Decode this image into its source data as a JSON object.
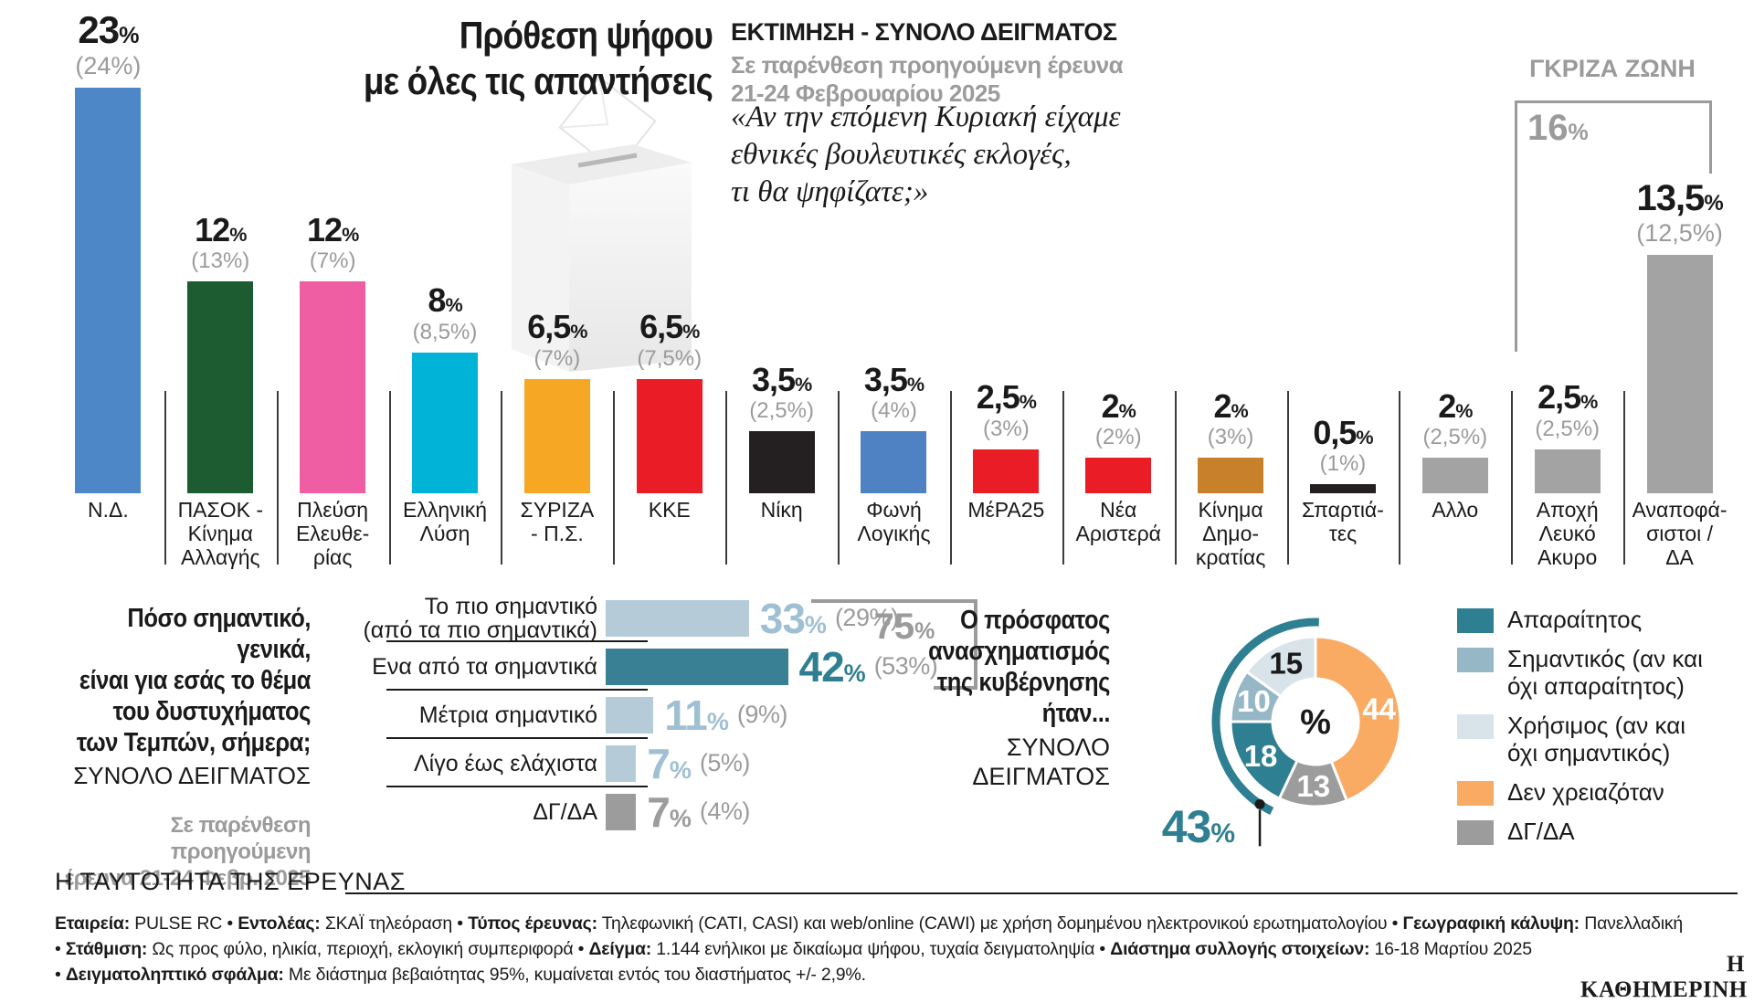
{
  "title": "Πρόθεση ψήφου\nμε όλες τις απαντήσεις",
  "header": {
    "estimate_label": "ΕΚΤΙΜΗΣΗ - ΣΥΝΟΛΟ ΔΕΙΓΜΑΤΟΣ",
    "paren_note": "Σε παρένθεση προηγούμενη έρευνα\n21-24 Φεβρουαρίου 2025",
    "quote": "«Αν την επόμενη Κυριακή είχαμε\nεθνικές βουλευτικές εκλογές,\nτι θα ψηφίζατε;»"
  },
  "gray_zone": {
    "label": "ΓΚΡΙΖΑ ΖΩΝΗ",
    "value": "16",
    "unit": "%"
  },
  "chart_data": [
    {
      "type": "bar",
      "title": "Πρόθεση ψήφου με όλες τις απαντήσεις",
      "unit": "%",
      "note": "Σε παρένθεση προηγούμενη έρευνα 21-24 Φεβρουαρίου 2025",
      "ylim": [
        0,
        25
      ],
      "grid": false,
      "bars": [
        {
          "label": "Ν.Δ.",
          "label_lines": "Ν.Δ.",
          "value": 23,
          "value_text": "23",
          "prev": "(24%)",
          "color": "#4e87c7"
        },
        {
          "label": "ΠΑΣΟΚ - Κίνημα Αλλαγής",
          "label_lines": "ΠΑΣΟΚ -\nΚίνημα\nΑλλαγής",
          "value": 12,
          "value_text": "12",
          "prev": "(13%)",
          "color": "#1d5c31"
        },
        {
          "label": "Πλεύση Ελευθερίας",
          "label_lines": "Πλεύση\nΕλευθε-\nρίας",
          "value": 12,
          "value_text": "12",
          "prev": "(7%)",
          "color": "#ef5ea2"
        },
        {
          "label": "Ελληνική Λύση",
          "label_lines": "Ελληνική\nΛύση",
          "value": 8,
          "value_text": "8",
          "prev": "(8,5%)",
          "color": "#00b3d7"
        },
        {
          "label": "ΣΥΡΙΖΑ - Π.Σ.",
          "label_lines": "ΣΥΡΙΖΑ\n- Π.Σ.",
          "value": 6.5,
          "value_text": "6,5",
          "prev": "(7%)",
          "color": "#f6a723"
        },
        {
          "label": "ΚΚΕ",
          "label_lines": "ΚΚΕ",
          "value": 6.5,
          "value_text": "6,5",
          "prev": "(7,5%)",
          "color": "#ea1c25"
        },
        {
          "label": "Νίκη",
          "label_lines": "Νίκη",
          "value": 3.5,
          "value_text": "3,5",
          "prev": "(2,5%)",
          "color": "#241f21"
        },
        {
          "label": "Φωνή Λογικής",
          "label_lines": "Φωνή\nΛογικής",
          "value": 3.5,
          "value_text": "3,5",
          "prev": "(4%)",
          "color": "#4e82c2"
        },
        {
          "label": "ΜέΡΑ25",
          "label_lines": "ΜέΡΑ25",
          "value": 2.5,
          "value_text": "2,5",
          "prev": "(3%)",
          "color": "#ea1c25"
        },
        {
          "label": "Νέα Αριστερά",
          "label_lines": "Νέα\nΑριστερά",
          "value": 2,
          "value_text": "2",
          "prev": "(2%)",
          "color": "#ea1c25"
        },
        {
          "label": "Κίνημα Δημοκρατίας",
          "label_lines": "Κίνημα\nΔημο-\nκρατίας",
          "value": 2,
          "value_text": "2",
          "prev": "(3%)",
          "color": "#c9802a"
        },
        {
          "label": "Σπαρτιάτες",
          "label_lines": "Σπαρτιά-\nτες",
          "value": 0.5,
          "value_text": "0,5",
          "prev": "(1%)",
          "color": "#241f21"
        },
        {
          "label": "Αλλο",
          "label_lines": "Αλλο",
          "value": 2,
          "value_text": "2",
          "prev": "(2,5%)",
          "color": "#a3a3a3"
        },
        {
          "label": "Αποχή Λευκό Ακυρο",
          "label_lines": "Αποχή\nΛευκό\nΑκυρο",
          "value": 2.5,
          "value_text": "2,5",
          "prev": "(2,5%)",
          "color": "#a3a3a3"
        },
        {
          "label": "Αναποφάσιστοι / ΔΑ",
          "label_lines": "Αναποφά-\nσιστοι /\nΔΑ",
          "value": 13.5,
          "value_text": "13,5",
          "prev": "(12,5%)",
          "color": "#a3a3a3"
        }
      ],
      "gray_zone_note": "ΓΚΡΙΖΑ ΖΩΝΗ 16% = Αποχή Λευκό Ακυρο 2,5% + Αναποφάσιστοι/ΔΑ 13,5%"
    },
    {
      "type": "bar-horizontal",
      "question": "Πόσο σημαντικό, γενικά,\nείναι για εσάς το θέμα\nτου δυστυχήματος\nτων Τεμπών, σήμερα;",
      "sample_label": "ΣΥΝΟΛΟ ΔΕΙΓΜΑΤΟΣ",
      "note": "Σε παρένθεση προηγούμενη\nέρευνα 21-24 Φεβρ. 2025",
      "unit": "%",
      "rows": [
        {
          "label": "Το πιο σημαντικό\n(από τα πιο σημαντικά)",
          "value": 33,
          "value_text": "33",
          "prev": "(29%)",
          "bar_color": "#b5cbd8",
          "num_color": "#9fc0d2"
        },
        {
          "label": "Ενα από τα σημαντικά",
          "value": 42,
          "value_text": "42",
          "prev": "(53%)",
          "bar_color": "#3a8094",
          "num_color": "#2e7f92"
        },
        {
          "label": "Μέτρια σημαντικό",
          "value": 11,
          "value_text": "11",
          "prev": "(9%)",
          "bar_color": "#b5cbd8",
          "num_color": "#9fc0d2"
        },
        {
          "label": "Λίγο έως ελάχιστα",
          "value": 7,
          "value_text": "7",
          "prev": "(5%)",
          "bar_color": "#b5cbd8",
          "num_color": "#9fc0d2"
        },
        {
          "label": "ΔΓ/ΔΑ",
          "value": 7,
          "value_text": "7",
          "prev": "(4%)",
          "bar_color": "#9c9c9c",
          "num_color": "#9c9c9c"
        }
      ],
      "bracket": {
        "value": "75",
        "unit": "%",
        "covers": "Το πιο σημαντικό 33 + Ενα από τα σημαντικά 42"
      }
    },
    {
      "type": "pie",
      "question": "Ο πρόσφατος\nανασχηματισμός\nτης κυβέρνησης\nήταν...",
      "sample_label": "ΣΥΝΟΛΟ\nΔΕΙΓΜΑΤΟΣ",
      "center_label": "%",
      "start_angle_deg": 0,
      "direction": "clockwise",
      "segments": [
        {
          "label": "Δεν χρειαζόταν",
          "value": 44,
          "color": "#f9aa63",
          "num_color": "#ffffff"
        },
        {
          "label": "ΔΓ/ΔΑ",
          "value": 13,
          "color": "#9c9c9c",
          "num_color": "#ffffff"
        },
        {
          "label": "Απαραίτητος",
          "value": 18,
          "color": "#2e7f92",
          "num_color": "#ffffff"
        },
        {
          "label": "Σημαντικός (αν και όχι απαραίτητος)",
          "value": 10,
          "color": "#95b7c6",
          "num_color": "#ffffff"
        },
        {
          "label": "Χρήσιμος (αν και όχι σημαντικός)",
          "value": 15,
          "color": "#d8e3ea",
          "num_color": "#1a1a1a"
        }
      ],
      "legend": [
        {
          "color": "#2e7f92",
          "label": "Απαραίτητος"
        },
        {
          "color": "#95b7c6",
          "label": "Σημαντικός (αν και\nόχι απαραίτητος)"
        },
        {
          "color": "#d8e3ea",
          "label": "Χρήσιμος (αν και\nόχι σημαντικός)"
        },
        {
          "color": "#f9aa63",
          "label": "Δεν χρειαζόταν"
        },
        {
          "color": "#9c9c9c",
          "label": "ΔΓ/ΔΑ"
        }
      ],
      "callout": {
        "value": "43",
        "unit": "%",
        "meaning": "Απαραίτητος 18 + Σημαντικός 10 + Χρήσιμος 15"
      }
    }
  ],
  "footer": {
    "heading": "Η ΤΑΥΤΟΤΗΤΑ ΤΗΣ ΕΡΕΥΝΑΣ",
    "lines": [
      [
        {
          "b": "Εταιρεία:"
        },
        {
          "t": " PULSE RC • "
        },
        {
          "b": "Εντολέας:"
        },
        {
          "t": " ΣΚΑΪ τηλεόραση • "
        },
        {
          "b": "Τύπος έρευνας:"
        },
        {
          "t": " Τηλεφωνική (CATI, CASI) και web/online (CAWI) με χρήση δομημένου ηλεκτρονικού ερωτηματολογίου • "
        },
        {
          "b": "Γεωγραφική κάλυψη:"
        },
        {
          "t": " Πανελλαδική"
        }
      ],
      [
        {
          "t": "• "
        },
        {
          "b": "Στάθμιση:"
        },
        {
          "t": " Ως προς φύλο, ηλικία, περιοχή, εκλογική συμπεριφορά • "
        },
        {
          "b": "Δείγμα:"
        },
        {
          "t": " 1.144 ενήλικοι με δικαίωμα ψήφου, τυχαία δειγματοληψία • "
        },
        {
          "b": "Διάστημα συλλογής στοιχείων:"
        },
        {
          "t": " 16-18 Μαρτίου 2025"
        }
      ],
      [
        {
          "t": "• "
        },
        {
          "b": "Δειγματοληπτικό σφάλμα:"
        },
        {
          "t": " Με διάστημα βεβαιότητας 95%, κυμαίνεται εντός του διαστήματος +/- 2,9%."
        }
      ]
    ],
    "logo": "Η ΚΑΘΗΜΕΡΙΝΗ"
  }
}
